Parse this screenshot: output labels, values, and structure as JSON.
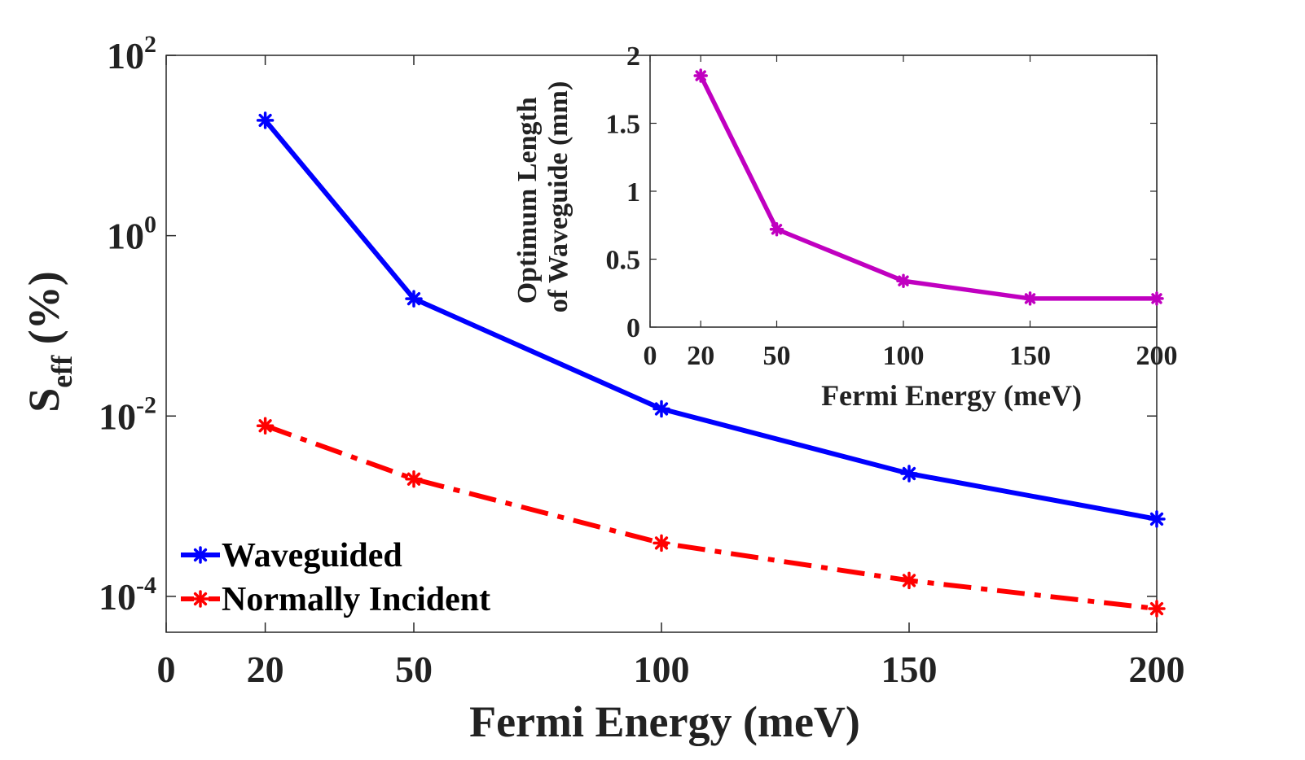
{
  "chart_data": [
    {
      "type": "line",
      "scale_y": "log",
      "x": [
        20,
        50,
        100,
        150,
        200
      ],
      "xlim": [
        0,
        200
      ],
      "x_ticks": [
        "0",
        "20",
        "50",
        "100",
        "150",
        "200"
      ],
      "ylim": [
        4e-05,
        100
      ],
      "y_ticks": [
        {
          "base": "10",
          "exp": "2"
        },
        {
          "base": "10",
          "exp": "0"
        },
        {
          "base": "10",
          "exp": "-2"
        },
        {
          "base": "10",
          "exp": "-4"
        }
      ],
      "xlabel": "Fermi Energy  (meV)",
      "ylabel": {
        "main": "S",
        "sub": "eff",
        "rest": " (%)"
      },
      "legend_position": "bottom-left",
      "series": [
        {
          "name": "Waveguided",
          "values": [
            19,
            0.2,
            0.012,
            0.0023,
            0.00072
          ],
          "color": "#0000ff",
          "style": "solid",
          "marker": "asterisk"
        },
        {
          "name": "Normally Incident",
          "values": [
            0.0078,
            0.002,
            0.00039,
            0.00015,
            7.3e-05
          ],
          "color": "#ff0000",
          "style": "dashdot",
          "marker": "asterisk"
        }
      ]
    },
    {
      "type": "line",
      "x": [
        20,
        50,
        100,
        150,
        200
      ],
      "xlim": [
        0,
        200
      ],
      "x_ticks": [
        "0",
        "20",
        "50",
        "100",
        "150",
        "200"
      ],
      "ylim": [
        0,
        2
      ],
      "y_ticks": [
        "0",
        "0.5",
        "1",
        "1.5",
        "2"
      ],
      "xlabel": "Fermi Energy (meV)",
      "ylabel_lines": [
        "Optimum Length",
        "of Waveguide (mm)"
      ],
      "series": [
        {
          "name": "Optimum Length",
          "values": [
            1.85,
            0.72,
            0.34,
            0.21,
            0.21
          ],
          "color": "#c000c0",
          "style": "solid",
          "marker": "asterisk"
        }
      ]
    }
  ]
}
